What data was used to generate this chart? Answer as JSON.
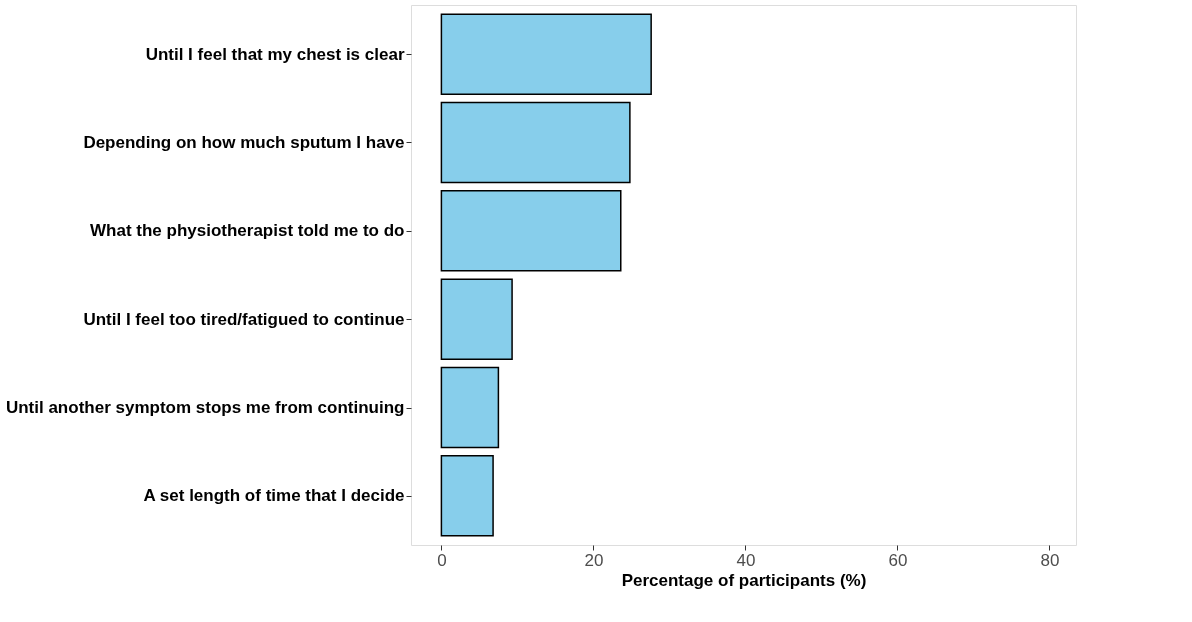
{
  "chart_data": {
    "type": "bar",
    "orientation": "horizontal",
    "xlabel": "Percentage of participants (%)",
    "categories": [
      "Until I feel that my chest is clear",
      "Depending on how much sputum I have",
      "What the physiotherapist told me to do",
      "Until I feel too tired/fatigued to continue",
      "Until another symptom stops me from continuing",
      "A set length of time that I decide"
    ],
    "values": [
      27.6,
      24.8,
      23.6,
      9.3,
      7.5,
      6.8
    ],
    "color": "#87ceeb",
    "xlim": [
      -4,
      83.5
    ],
    "xticks": [
      0,
      20,
      40,
      60,
      80
    ],
    "grid": false
  }
}
